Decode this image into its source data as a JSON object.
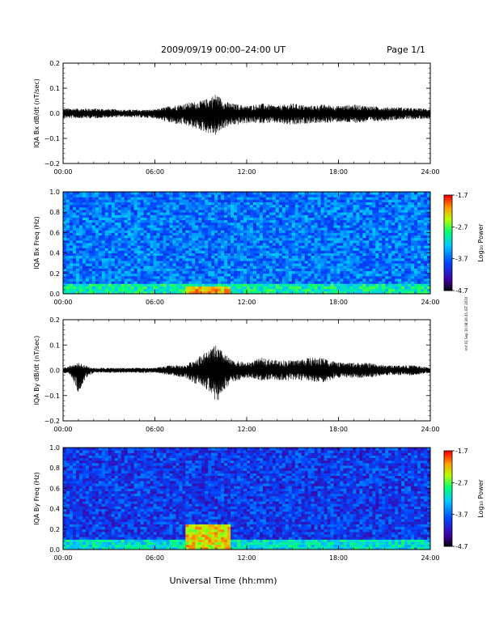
{
  "header": {
    "title": "2009/09/19  00:00–24:00 UT",
    "page_label": "Page 1/1"
  },
  "side_note": "rmf 01 Sep 10 08:26:41 IGT 2010",
  "xlabel": "Universal Time (hh:mm)",
  "time_ticks": [
    "00:00",
    "06:00",
    "12:00",
    "18:00",
    "24:00"
  ],
  "colorbar": {
    "label": "Log₁₀ Power",
    "ticks": [
      "-1.7",
      "-2.7",
      "-3.7",
      "-4.7"
    ],
    "colors": [
      "#ff0000",
      "#ff8c00",
      "#ffff00",
      "#00ff00",
      "#00ffff",
      "#0060ff",
      "#4000c0",
      "#000000"
    ]
  },
  "chart_data": [
    {
      "type": "line",
      "ylabel": "IQA Bx dB/dt (nT/sec)",
      "ylim": [
        -0.2,
        0.2
      ],
      "yticks": [
        "0.2",
        "0.1",
        "0.0",
        "−0.1",
        "−0.2"
      ],
      "x_range_hours": [
        0,
        24
      ],
      "series": [
        {
          "envelope_hours": [
            0,
            2,
            4,
            6,
            7,
            8,
            9,
            9.5,
            10,
            10.5,
            11,
            12,
            13,
            14,
            15,
            16,
            17,
            18,
            19,
            20,
            21,
            22,
            23,
            24
          ],
          "envelope_upper": [
            0.02,
            0.02,
            0.015,
            0.015,
            0.03,
            0.04,
            0.05,
            0.06,
            0.08,
            0.05,
            0.04,
            0.03,
            0.04,
            0.03,
            0.04,
            0.03,
            0.035,
            0.03,
            0.035,
            0.03,
            0.025,
            0.025,
            0.02,
            0.02
          ],
          "envelope_lower": [
            -0.02,
            -0.02,
            -0.015,
            -0.02,
            -0.04,
            -0.05,
            -0.07,
            -0.08,
            -0.09,
            -0.06,
            -0.05,
            -0.04,
            -0.04,
            -0.04,
            -0.05,
            -0.04,
            -0.04,
            -0.035,
            -0.04,
            -0.035,
            -0.03,
            -0.025,
            -0.025,
            -0.02
          ]
        }
      ]
    },
    {
      "type": "heatmap",
      "ylabel": "IQA Bx Freq (Hz)",
      "ylim": [
        0,
        1.0
      ],
      "yticks": [
        "1.0",
        "0.8",
        "0.6",
        "0.4",
        "0.2",
        "0.0"
      ],
      "x_range_hours": [
        0,
        24
      ],
      "zlim": [
        -4.7,
        -1.7
      ],
      "z_label": "Log₁₀ Power",
      "features": [
        {
          "hours": [
            0,
            24
          ],
          "freq": [
            0.0,
            0.1
          ],
          "log_power": -3.0
        },
        {
          "hours": [
            8,
            11
          ],
          "freq": [
            0.0,
            0.08
          ],
          "log_power": -2.2
        },
        {
          "hours": [
            0,
            24
          ],
          "freq": [
            0.1,
            1.0
          ],
          "log_power": -3.6
        }
      ]
    },
    {
      "type": "line",
      "ylabel": "IQA By dB/dt (nT/sec)",
      "ylim": [
        -0.2,
        0.2
      ],
      "yticks": [
        "0.2",
        "0.1",
        "0.0",
        "−0.1",
        "−0.2"
      ],
      "x_range_hours": [
        0,
        24
      ],
      "series": [
        {
          "envelope_hours": [
            0,
            0.5,
            1,
            1.5,
            2,
            4,
            6,
            7,
            8,
            8.5,
            9,
            9.5,
            10,
            10.5,
            11,
            12,
            13,
            14,
            15,
            16,
            17,
            18,
            19,
            20,
            21,
            22,
            23,
            24
          ],
          "envelope_upper": [
            0.01,
            0.02,
            0.03,
            0.02,
            0.01,
            0.01,
            0.01,
            0.02,
            0.02,
            0.04,
            0.06,
            0.08,
            0.1,
            0.07,
            0.04,
            0.03,
            0.05,
            0.04,
            0.04,
            0.05,
            0.05,
            0.03,
            0.03,
            0.03,
            0.02,
            0.02,
            0.02,
            0.01
          ],
          "envelope_lower": [
            -0.01,
            -0.02,
            -0.09,
            -0.03,
            -0.01,
            -0.01,
            -0.01,
            -0.02,
            -0.03,
            -0.05,
            -0.06,
            -0.08,
            -0.15,
            -0.08,
            -0.05,
            -0.03,
            -0.04,
            -0.04,
            -0.04,
            -0.04,
            -0.05,
            -0.03,
            -0.03,
            -0.03,
            -0.02,
            -0.02,
            -0.02,
            -0.01
          ]
        }
      ]
    },
    {
      "type": "heatmap",
      "ylabel": "IQA By Freq (Hz)",
      "ylim": [
        0,
        1.0
      ],
      "yticks": [
        "1.0",
        "0.8",
        "0.6",
        "0.4",
        "0.2",
        "0.0"
      ],
      "x_range_hours": [
        0,
        24
      ],
      "zlim": [
        -4.7,
        -1.7
      ],
      "z_label": "Log₁₀ Power",
      "features": [
        {
          "hours": [
            0,
            24
          ],
          "freq": [
            0.0,
            0.1
          ],
          "log_power": -3.1
        },
        {
          "hours": [
            8,
            11
          ],
          "freq": [
            0.0,
            0.25
          ],
          "log_power": -2.3
        },
        {
          "hours": [
            0,
            24
          ],
          "freq": [
            0.1,
            1.0
          ],
          "log_power": -3.9
        }
      ]
    }
  ]
}
